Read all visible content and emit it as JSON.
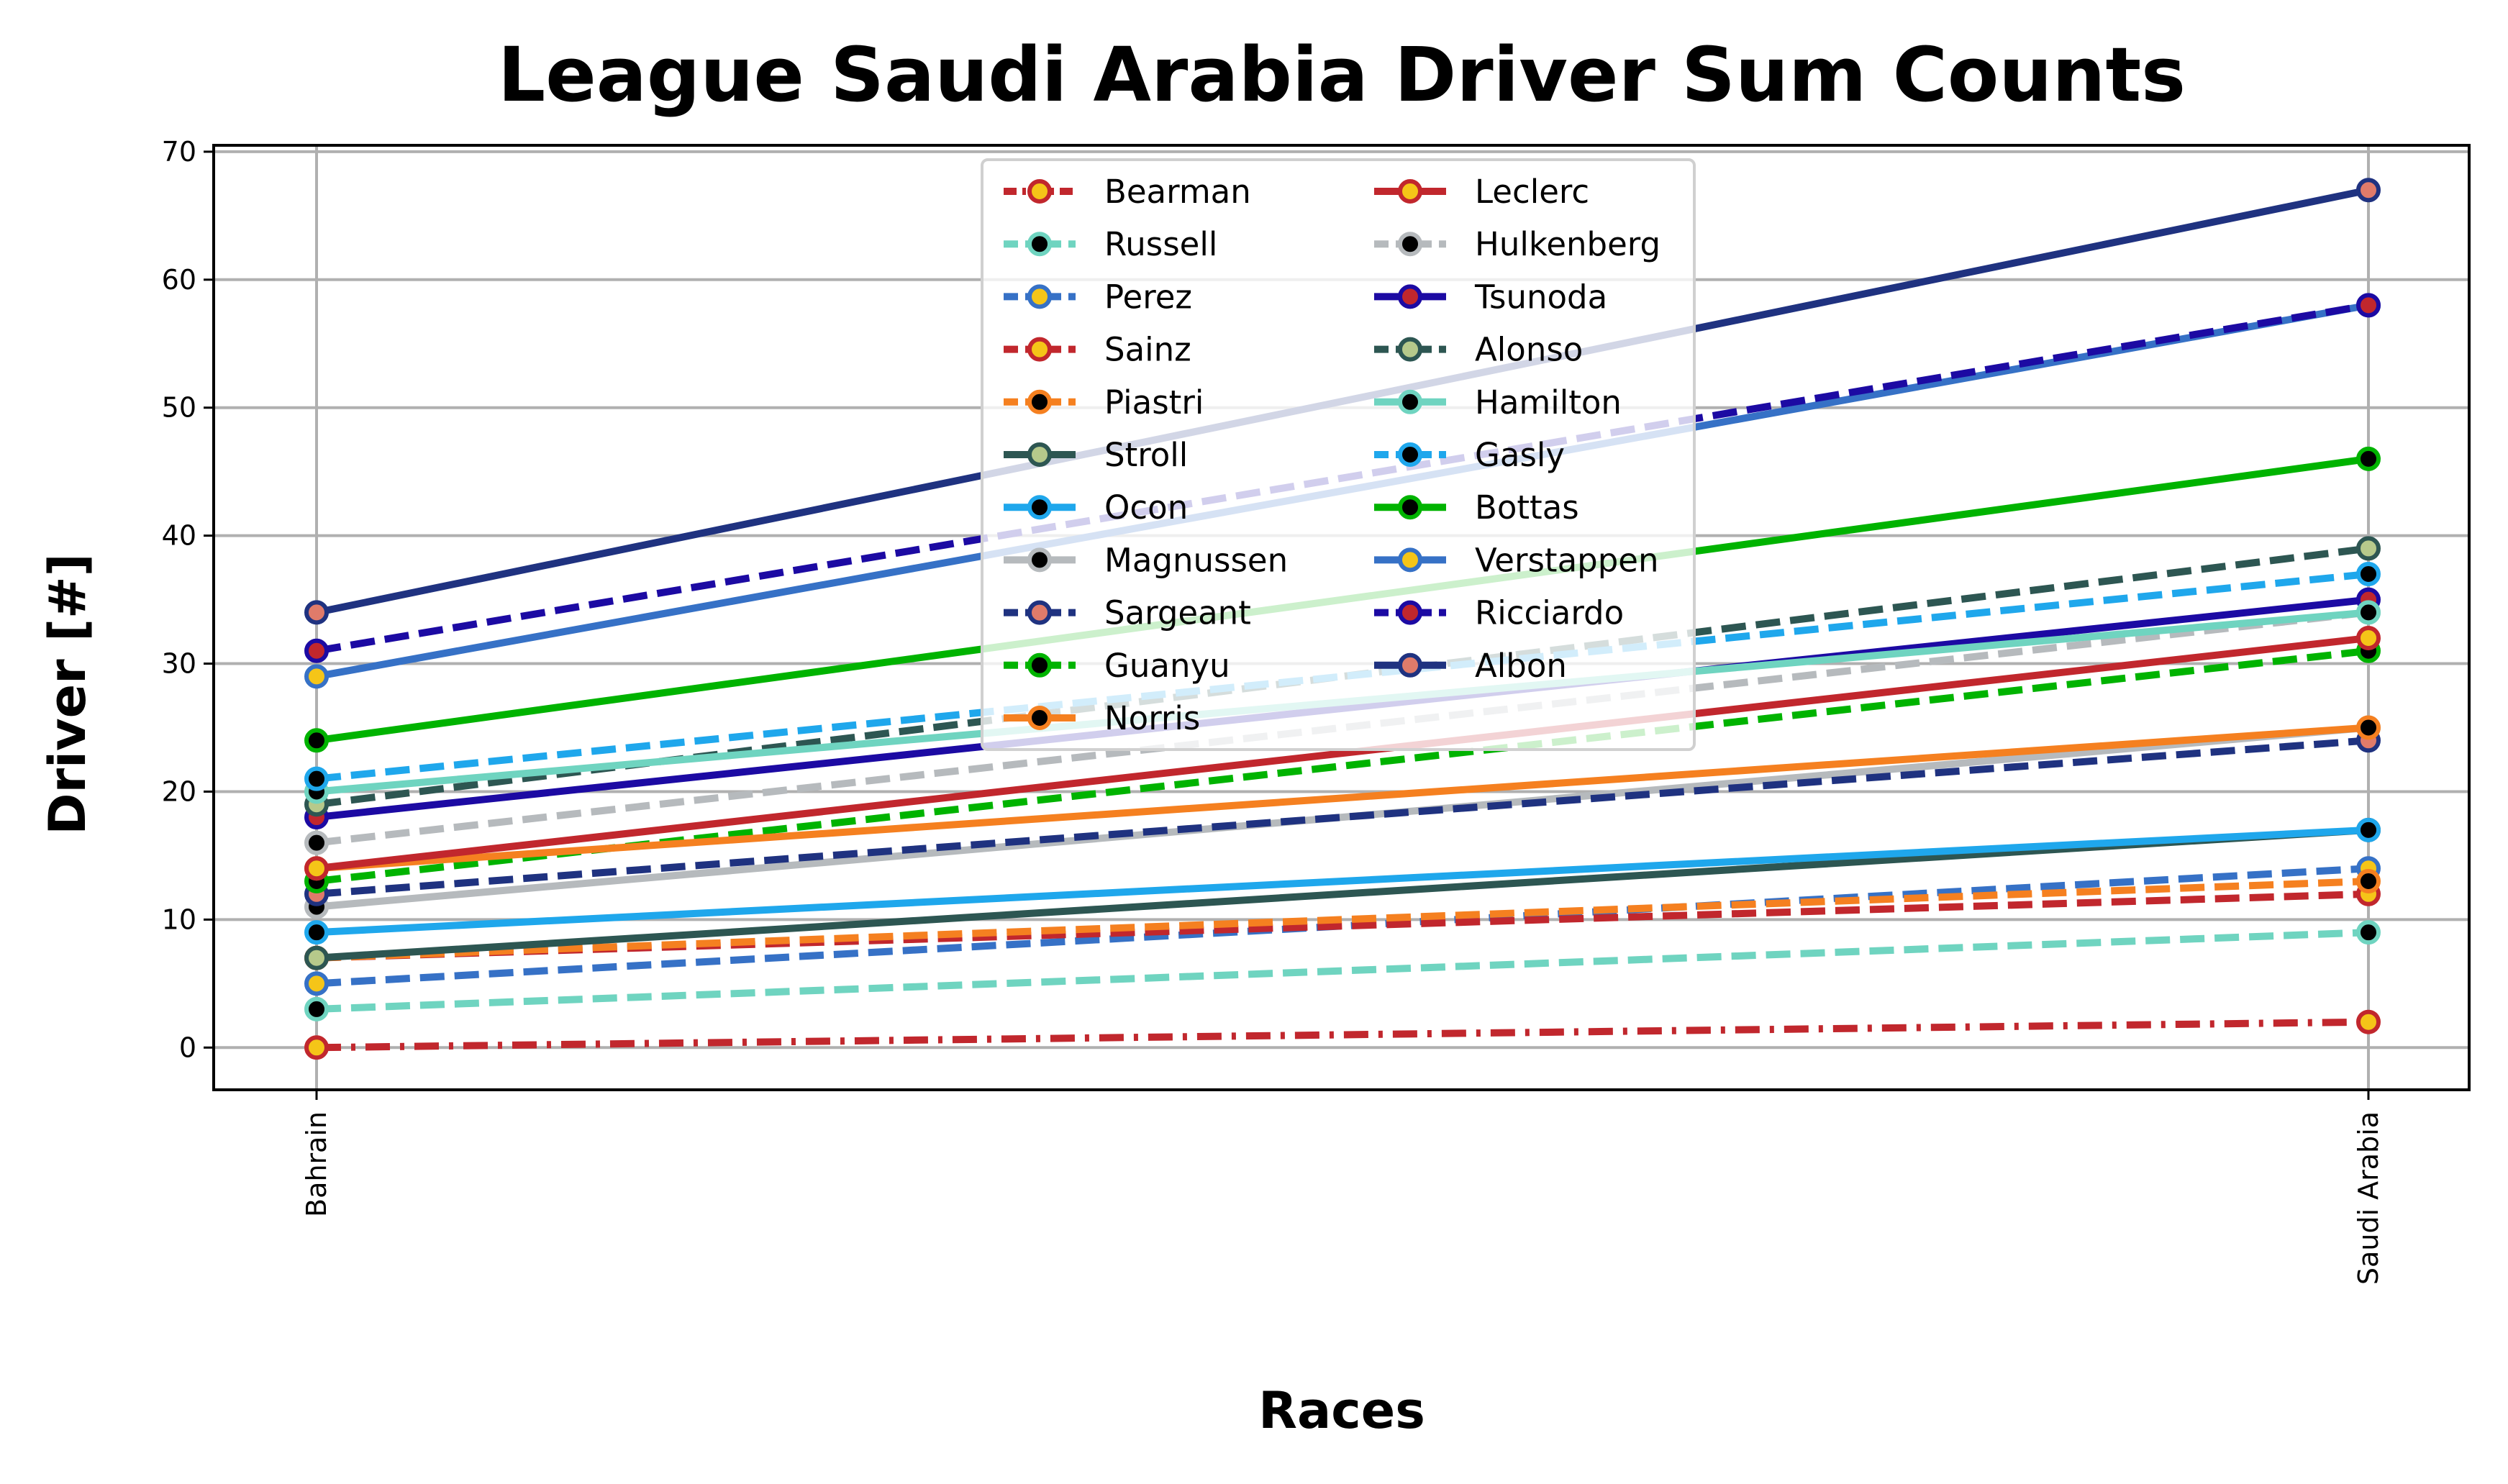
{
  "chart_data": {
    "type": "line",
    "title": "League Saudi Arabia Driver Sum Counts",
    "xlabel": "Races",
    "ylabel": "Driver [#]",
    "categories": [
      "Bahrain",
      "Saudi Arabia"
    ],
    "ylim": [
      -3.3,
      70.5
    ],
    "yticks": [
      0,
      10,
      20,
      30,
      40,
      50,
      60,
      70
    ],
    "grid": true,
    "legend": {
      "placement": "top-center",
      "columns": 2
    },
    "series": [
      {
        "name": "Bearman",
        "values": [
          0,
          2
        ],
        "color": "#c1272d",
        "dash": "dashdot",
        "marker_face": "#f5c518",
        "marker_edge": "#c1272d"
      },
      {
        "name": "Russell",
        "values": [
          3,
          9
        ],
        "color": "#6fd4c0",
        "dash": "dashed",
        "marker_face": "#000000",
        "marker_edge": "#6fd4c0"
      },
      {
        "name": "Perez",
        "values": [
          5,
          14
        ],
        "color": "#3671c6",
        "dash": "dashed",
        "marker_face": "#f5c518",
        "marker_edge": "#3671c6"
      },
      {
        "name": "Sainz",
        "values": [
          7,
          12
        ],
        "color": "#c1272d",
        "dash": "dashed",
        "marker_face": "#f5c518",
        "marker_edge": "#c1272d"
      },
      {
        "name": "Piastri",
        "values": [
          7,
          13
        ],
        "color": "#f58020",
        "dash": "dashed",
        "marker_face": "#000000",
        "marker_edge": "#f58020"
      },
      {
        "name": "Stroll",
        "values": [
          7,
          17
        ],
        "color": "#2d5652",
        "dash": "solid",
        "marker_face": "#b6c98b",
        "marker_edge": "#2d5652"
      },
      {
        "name": "Ocon",
        "values": [
          9,
          17
        ],
        "color": "#1fa7ec",
        "dash": "solid",
        "marker_face": "#000000",
        "marker_edge": "#1fa7ec"
      },
      {
        "name": "Magnussen",
        "values": [
          11,
          25
        ],
        "color": "#b6babd",
        "dash": "solid",
        "marker_face": "#000000",
        "marker_edge": "#b6babd"
      },
      {
        "name": "Sargeant",
        "values": [
          12,
          24
        ],
        "color": "#1f3280",
        "dash": "dashed",
        "marker_face": "#e07b6a",
        "marker_edge": "#1f3280"
      },
      {
        "name": "Guanyu",
        "values": [
          13,
          31
        ],
        "color": "#00b300",
        "dash": "dashed",
        "marker_face": "#000000",
        "marker_edge": "#00b300"
      },
      {
        "name": "Norris",
        "values": [
          14,
          25
        ],
        "color": "#f58020",
        "dash": "solid",
        "marker_face": "#000000",
        "marker_edge": "#f58020"
      },
      {
        "name": "Leclerc",
        "values": [
          14,
          32
        ],
        "color": "#c1272d",
        "dash": "solid",
        "marker_face": "#f5c518",
        "marker_edge": "#c1272d"
      },
      {
        "name": "Hulkenberg",
        "values": [
          16,
          34
        ],
        "color": "#b6babd",
        "dash": "dashed",
        "marker_face": "#000000",
        "marker_edge": "#b6babd"
      },
      {
        "name": "Tsunoda",
        "values": [
          18,
          35
        ],
        "color": "#1c0aa3",
        "dash": "solid",
        "marker_face": "#c1272d",
        "marker_edge": "#1c0aa3"
      },
      {
        "name": "Alonso",
        "values": [
          19,
          39
        ],
        "color": "#2d5652",
        "dash": "dashed",
        "marker_face": "#b6c98b",
        "marker_edge": "#2d5652"
      },
      {
        "name": "Hamilton",
        "values": [
          20,
          34
        ],
        "color": "#6fd4c0",
        "dash": "solid",
        "marker_face": "#000000",
        "marker_edge": "#6fd4c0"
      },
      {
        "name": "Gasly",
        "values": [
          21,
          37
        ],
        "color": "#1fa7ec",
        "dash": "dashed",
        "marker_face": "#000000",
        "marker_edge": "#1fa7ec"
      },
      {
        "name": "Bottas",
        "values": [
          24,
          46
        ],
        "color": "#00b300",
        "dash": "solid",
        "marker_face": "#000000",
        "marker_edge": "#00b300"
      },
      {
        "name": "Verstappen",
        "values": [
          29,
          58
        ],
        "color": "#3671c6",
        "dash": "solid",
        "marker_face": "#f5c518",
        "marker_edge": "#3671c6"
      },
      {
        "name": "Ricciardo",
        "values": [
          31,
          58
        ],
        "color": "#1c0aa3",
        "dash": "dashed",
        "marker_face": "#c1272d",
        "marker_edge": "#1c0aa3"
      },
      {
        "name": "Albon",
        "values": [
          34,
          67
        ],
        "color": "#1f3280",
        "dash": "solid",
        "marker_face": "#e07b6a",
        "marker_edge": "#1f3280"
      }
    ]
  }
}
